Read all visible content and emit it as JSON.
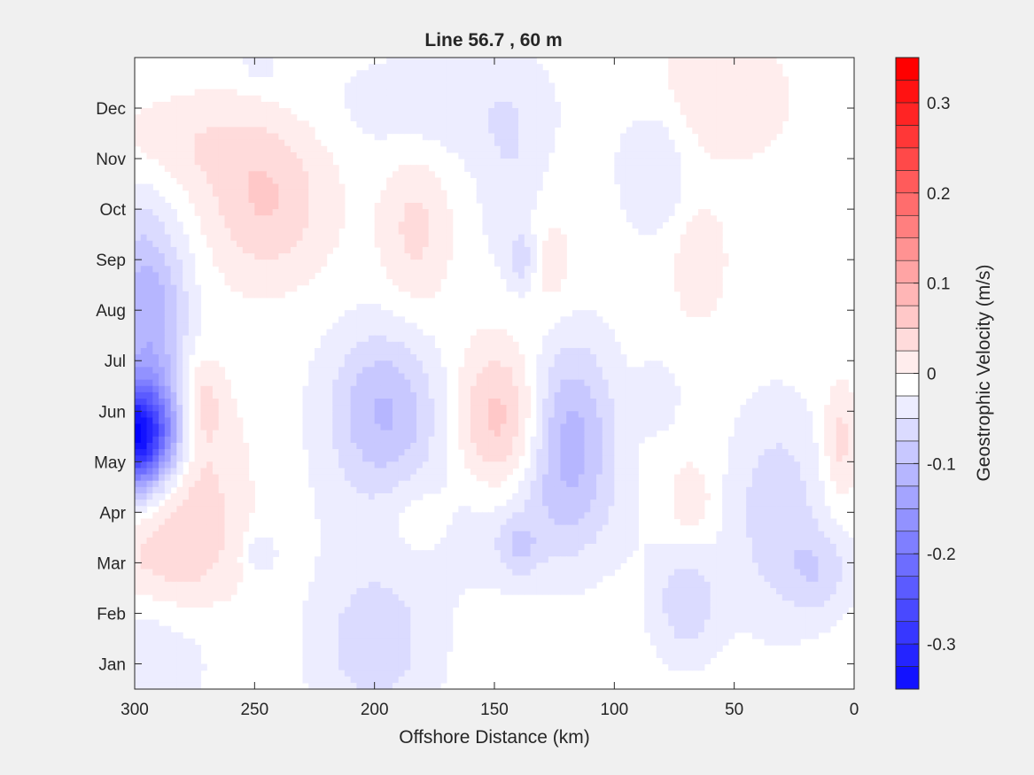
{
  "chart_data": {
    "type": "heatmap",
    "title": "Line 56.7 , 60 m",
    "xlabel": "Offshore Distance (km)",
    "ylabel": "",
    "xlim": [
      300,
      0
    ],
    "x_reversed": true,
    "x_ticks": [
      300,
      250,
      200,
      150,
      100,
      50,
      0
    ],
    "y_ticks": [
      "Jan",
      "Feb",
      "Mar",
      "Apr",
      "May",
      "Jun",
      "Jul",
      "Aug",
      "Sep",
      "Oct",
      "Nov",
      "Dec"
    ],
    "grid": false,
    "colorbar": {
      "label": "Geostrophic Velocity (m/s)",
      "range": [
        -0.35,
        0.35
      ],
      "step": 0.025,
      "tick_values": [
        -0.3,
        -0.2,
        -0.1,
        0,
        0.1,
        0.2,
        0.3
      ],
      "tick_labels": [
        "-0.3",
        "-0.2",
        "-0.1",
        "0",
        "0.1",
        "0.2",
        "0.3"
      ],
      "colormap": "blue-white-red",
      "neg_color": "#0000ff",
      "pos_color": "#ff0000",
      "zero_color": "#ffffff"
    },
    "features": [
      {
        "x": 300,
        "month": 5.5,
        "sx": 12,
        "sy": 0.75,
        "value": -0.35
      },
      {
        "x": 292,
        "month": 7.5,
        "sx": 10,
        "sy": 1.2,
        "value": -0.08
      },
      {
        "x": 300,
        "month": 8.9,
        "sx": 14,
        "sy": 1.3,
        "value": -0.05
      },
      {
        "x": 278,
        "month": 4.4,
        "sx": 16,
        "sy": 1.3,
        "value": 0.055
      },
      {
        "x": 272,
        "month": 6.2,
        "sx": 6,
        "sy": 0.6,
        "value": 0.045
      },
      {
        "x": 290,
        "month": 3.0,
        "sx": 22,
        "sy": 0.7,
        "value": 0.03
      },
      {
        "x": 300,
        "month": 1.2,
        "sx": 22,
        "sy": 0.9,
        "value": -0.035
      },
      {
        "x": 245,
        "month": 10.0,
        "sx": 18,
        "sy": 1.0,
        "value": 0.06
      },
      {
        "x": 270,
        "month": 11.3,
        "sx": 30,
        "sy": 0.7,
        "value": 0.035
      },
      {
        "x": 183,
        "month": 9.6,
        "sx": 10,
        "sy": 1.1,
        "value": 0.045
      },
      {
        "x": 196,
        "month": 6.0,
        "sx": 17,
        "sy": 1.15,
        "value": -0.09
      },
      {
        "x": 200,
        "month": 1.4,
        "sx": 18,
        "sy": 1.1,
        "value": -0.055
      },
      {
        "x": 146,
        "month": 5.8,
        "sx": 14,
        "sy": 1.1,
        "value": 0.085
      },
      {
        "x": 120,
        "month": 5.5,
        "sx": 14,
        "sy": 1.35,
        "value": -0.105
      },
      {
        "x": 155,
        "month": 3.8,
        "sx": 40,
        "sy": 0.9,
        "value": -0.03
      },
      {
        "x": 140,
        "month": 3.3,
        "sx": 6,
        "sy": 0.4,
        "value": -0.045
      },
      {
        "x": 182,
        "month": 3.9,
        "sx": 11,
        "sy": 0.6,
        "value": 0.035
      },
      {
        "x": 175,
        "month": 12.0,
        "sx": 35,
        "sy": 0.8,
        "value": -0.03
      },
      {
        "x": 143,
        "month": 10.6,
        "sx": 10,
        "sy": 1.5,
        "value": -0.03
      },
      {
        "x": 138,
        "month": 9.0,
        "sx": 4,
        "sy": 0.4,
        "value": -0.045
      },
      {
        "x": 127,
        "month": 8.9,
        "sx": 7,
        "sy": 0.8,
        "value": 0.03
      },
      {
        "x": 83,
        "month": 10.9,
        "sx": 11,
        "sy": 1.0,
        "value": -0.04
      },
      {
        "x": 65,
        "month": 9.0,
        "sx": 8,
        "sy": 0.8,
        "value": 0.035
      },
      {
        "x": 58,
        "month": 12.2,
        "sx": 22,
        "sy": 0.9,
        "value": 0.035
      },
      {
        "x": 70,
        "month": 2.2,
        "sx": 10,
        "sy": 0.8,
        "value": -0.055
      },
      {
        "x": 68,
        "month": 4.2,
        "sx": 7,
        "sy": 0.6,
        "value": 0.035
      },
      {
        "x": 82,
        "month": 6.3,
        "sx": 6,
        "sy": 0.45,
        "value": -0.035
      },
      {
        "x": 32,
        "month": 4.0,
        "sx": 14,
        "sy": 1.5,
        "value": -0.055
      },
      {
        "x": 14,
        "month": 2.8,
        "sx": 10,
        "sy": 0.6,
        "value": -0.045
      },
      {
        "x": 6,
        "month": 5.4,
        "sx": 5,
        "sy": 0.8,
        "value": 0.05
      },
      {
        "x": 248,
        "month": 3.2,
        "sx": 5,
        "sy": 0.3,
        "value": -0.035
      },
      {
        "x": 248,
        "month": 12.9,
        "sx": 5,
        "sy": 0.3,
        "value": -0.03
      }
    ]
  }
}
